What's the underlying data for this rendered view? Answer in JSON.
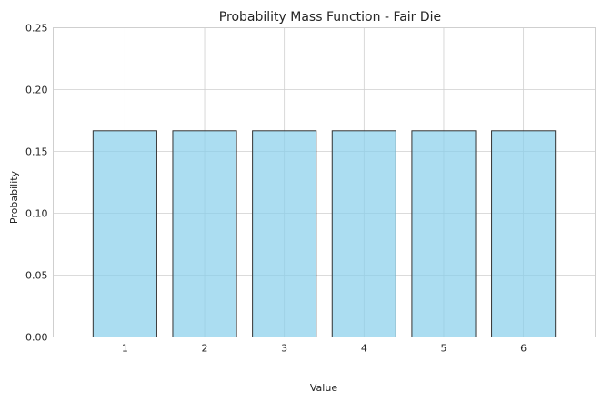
{
  "chart_data": {
    "type": "bar",
    "title": "Probability Mass Function - Fair Die",
    "xlabel": "Value",
    "ylabel": "Probability",
    "categories": [
      "1",
      "2",
      "3",
      "4",
      "5",
      "6"
    ],
    "values": [
      0.1667,
      0.1667,
      0.1667,
      0.1667,
      0.1667,
      0.1667
    ],
    "ylim": [
      0,
      0.25
    ],
    "yticks": [
      "0.00",
      "0.05",
      "0.10",
      "0.15",
      "0.20",
      "0.25"
    ],
    "grid": true,
    "bar_color": "#87CEEB",
    "bar_edge_color": "#333333",
    "legend": "none"
  }
}
